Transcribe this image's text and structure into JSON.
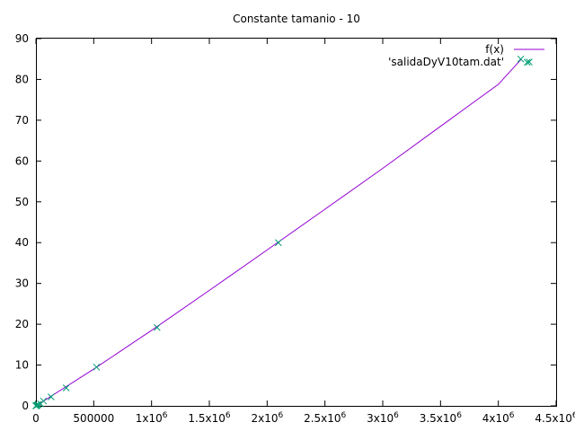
{
  "chart_data": {
    "type": "scatter",
    "title": "Constante tamanio - 10",
    "xlabel": "",
    "ylabel": "",
    "xlim": [
      0,
      4500000
    ],
    "ylim": [
      0,
      90
    ],
    "grid": false,
    "legend_position": "top-right",
    "x_ticks": [
      {
        "value": 0,
        "label": "0"
      },
      {
        "value": 500000,
        "label": "500000"
      },
      {
        "value": 1000000,
        "mantissa": "1x10",
        "exp": "6"
      },
      {
        "value": 1500000,
        "mantissa": "1.5x10",
        "exp": "6"
      },
      {
        "value": 2000000,
        "mantissa": "2x10",
        "exp": "6"
      },
      {
        "value": 2500000,
        "mantissa": "2.5x10",
        "exp": "6"
      },
      {
        "value": 3000000,
        "mantissa": "3x10",
        "exp": "6"
      },
      {
        "value": 3500000,
        "mantissa": "3.5x10",
        "exp": "6"
      },
      {
        "value": 4000000,
        "mantissa": "4x10",
        "exp": "6"
      },
      {
        "value": 4500000,
        "mantissa": "4.5x10",
        "exp": "6"
      }
    ],
    "y_ticks": [
      0,
      10,
      20,
      30,
      40,
      50,
      60,
      70,
      80,
      90
    ],
    "series": [
      {
        "name": "f(x)",
        "kind": "line",
        "color": "#9400d3",
        "x": [
          0,
          500000,
          1000000,
          1500000,
          2000000,
          2500000,
          3000000,
          3500000,
          4000000,
          4200000
        ],
        "y": [
          0,
          9.0,
          18.5,
          28.3,
          38.2,
          48.2,
          58.2,
          68.5,
          78.8,
          85.0
        ]
      },
      {
        "name": "'salidaDyV10tam.dat'",
        "kind": "points",
        "marker": "x",
        "color": "#009e73",
        "x": [
          100,
          1000,
          5000,
          10000,
          20000,
          40000,
          65000,
          131000,
          262000,
          524000,
          1048000,
          2097000,
          4194000,
          4250000
        ],
        "y": [
          0.0,
          0.0,
          0.1,
          0.2,
          0.3,
          0.5,
          1.2,
          2.2,
          4.4,
          9.5,
          19.2,
          40.0,
          85.0,
          84.2
        ]
      }
    ]
  }
}
